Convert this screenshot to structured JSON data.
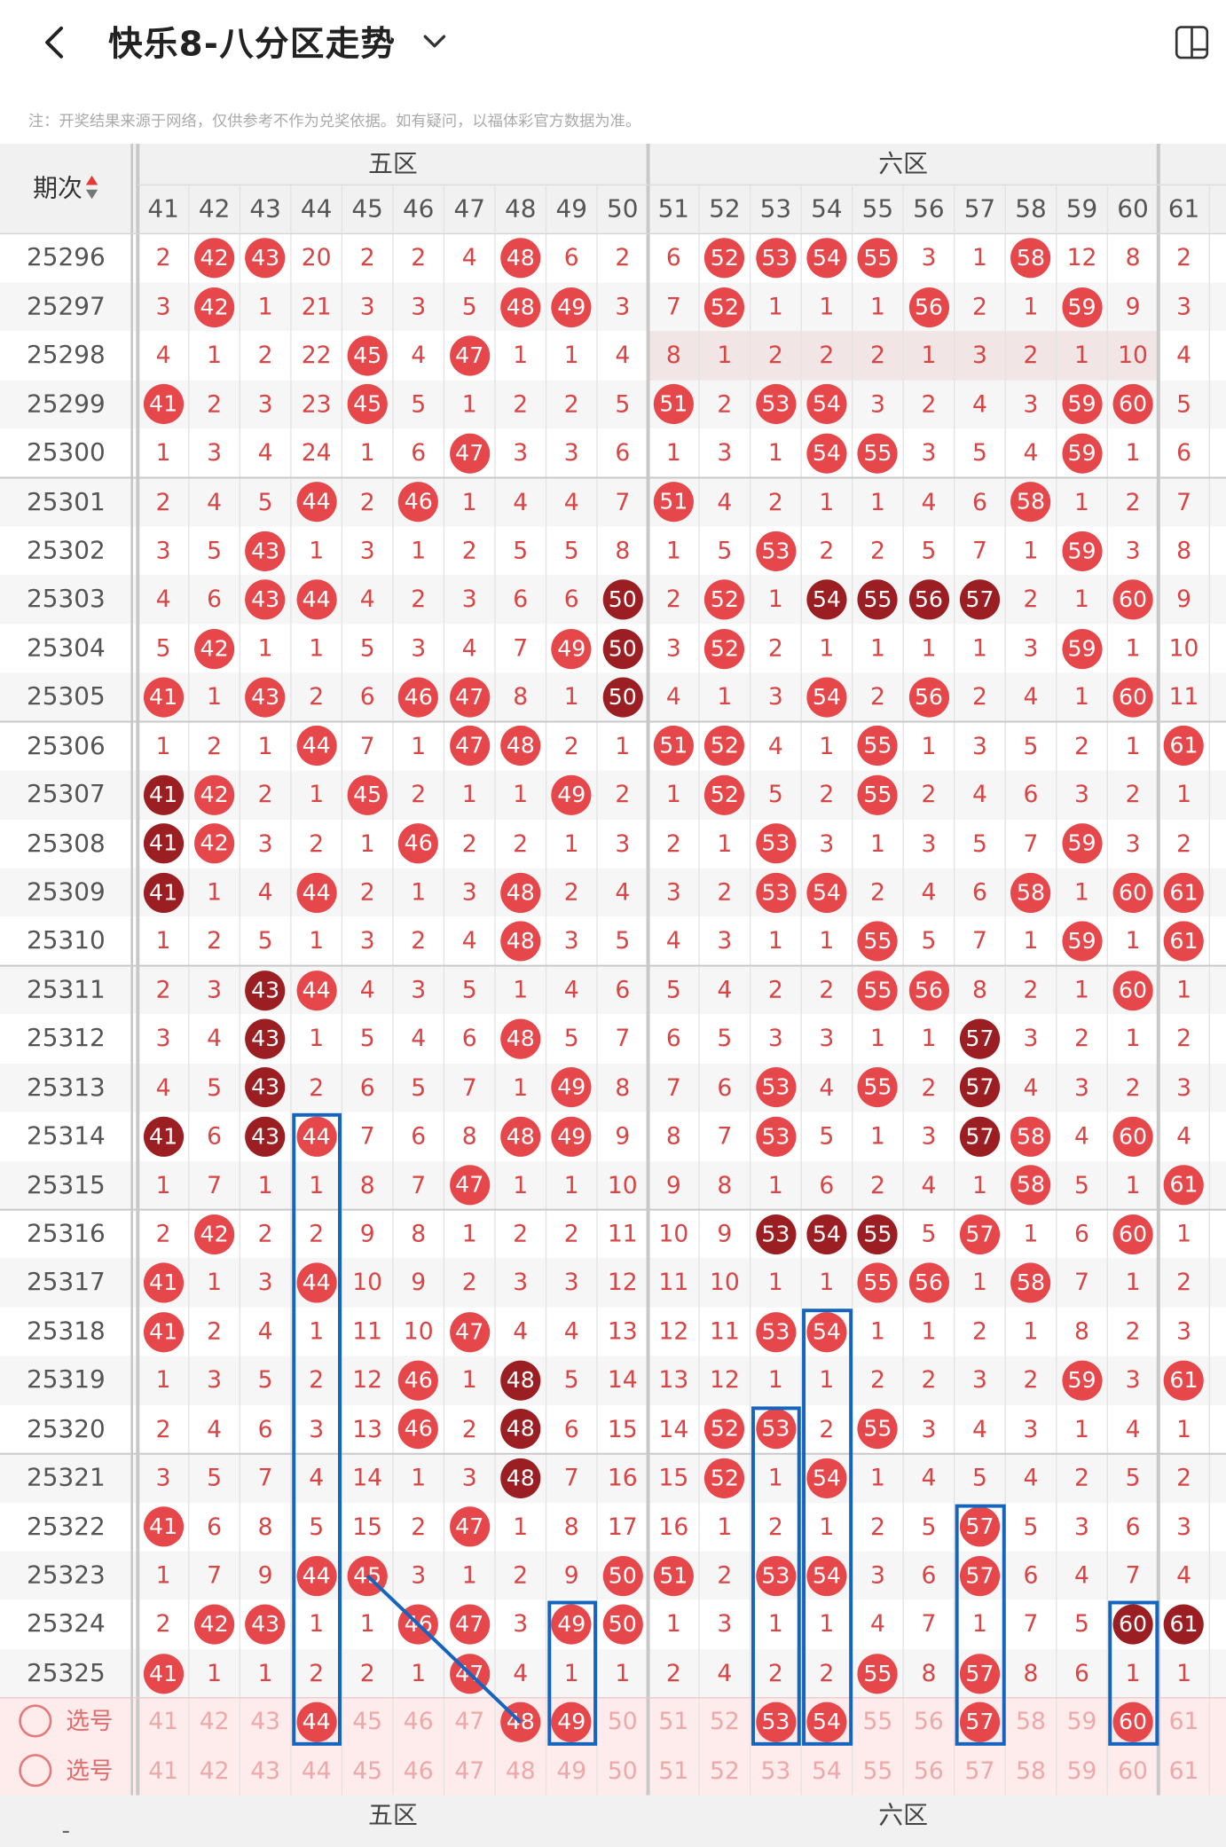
{
  "header": {
    "title": "快乐8-八分区走势",
    "note": "注：开奖结果来源于网络，仅供参考不作为兑奖依据。如有疑问，以福体彩官方数据为准。"
  },
  "table": {
    "period_header": "期次",
    "zones": [
      {
        "name": "五区",
        "first": 41,
        "last": 50
      },
      {
        "name": "六区",
        "first": 51,
        "last": 60
      }
    ],
    "columns": [
      "41",
      "42",
      "43",
      "44",
      "45",
      "46",
      "47",
      "48",
      "49",
      "50",
      "51",
      "52",
      "53",
      "54",
      "55",
      "56",
      "57",
      "58",
      "59",
      "60",
      "61"
    ],
    "periods": [
      "25296",
      "25297",
      "25298",
      "25299",
      "25300",
      "25301",
      "25302",
      "25303",
      "25304",
      "25305",
      "25306",
      "25307",
      "25308",
      "25309",
      "25310",
      "25311",
      "25312",
      "25313",
      "25314",
      "25315",
      "25316",
      "25317",
      "25318",
      "25319",
      "25320",
      "25321",
      "25322",
      "25323",
      "25324",
      "25325"
    ],
    "cells": [
      [
        "2",
        "42",
        "43",
        "20",
        "2",
        "2",
        "4",
        "48",
        "6",
        "2",
        "6",
        "52",
        "53",
        "54",
        "55",
        "3",
        "1",
        "58",
        "12",
        "8",
        "2"
      ],
      [
        "3",
        "42",
        "1",
        "21",
        "3",
        "3",
        "5",
        "48",
        "49",
        "3",
        "7",
        "52",
        "1",
        "1",
        "1",
        "56",
        "2",
        "1",
        "59",
        "9",
        "3"
      ],
      [
        "4",
        "1",
        "2",
        "22",
        "45",
        "4",
        "47",
        "1",
        "1",
        "4",
        "8",
        "1",
        "2",
        "2",
        "2",
        "1",
        "3",
        "2",
        "1",
        "10",
        "4"
      ],
      [
        "41",
        "2",
        "3",
        "23",
        "45",
        "5",
        "1",
        "2",
        "2",
        "5",
        "51",
        "2",
        "53",
        "54",
        "3",
        "2",
        "4",
        "3",
        "59",
        "60",
        "5"
      ],
      [
        "1",
        "3",
        "4",
        "24",
        "1",
        "6",
        "47",
        "3",
        "3",
        "6",
        "1",
        "3",
        "1",
        "54",
        "55",
        "3",
        "5",
        "4",
        "59",
        "1",
        "6"
      ],
      [
        "2",
        "4",
        "5",
        "44",
        "2",
        "46",
        "1",
        "4",
        "4",
        "7",
        "51",
        "4",
        "2",
        "1",
        "1",
        "4",
        "6",
        "58",
        "1",
        "2",
        "7"
      ],
      [
        "3",
        "5",
        "43",
        "1",
        "3",
        "1",
        "2",
        "5",
        "5",
        "8",
        "1",
        "5",
        "53",
        "2",
        "2",
        "5",
        "7",
        "1",
        "59",
        "3",
        "8"
      ],
      [
        "4",
        "6",
        "43",
        "44",
        "4",
        "2",
        "3",
        "6",
        "6",
        "50",
        "2",
        "52",
        "1",
        "54",
        "55",
        "56",
        "57",
        "2",
        "1",
        "60",
        "9"
      ],
      [
        "5",
        "42",
        "1",
        "1",
        "5",
        "3",
        "4",
        "7",
        "49",
        "50",
        "3",
        "52",
        "2",
        "1",
        "1",
        "1",
        "1",
        "3",
        "59",
        "1",
        "10"
      ],
      [
        "41",
        "1",
        "43",
        "2",
        "6",
        "46",
        "47",
        "8",
        "1",
        "50",
        "4",
        "1",
        "3",
        "54",
        "2",
        "56",
        "2",
        "4",
        "1",
        "60",
        "11"
      ],
      [
        "1",
        "2",
        "1",
        "44",
        "7",
        "1",
        "47",
        "48",
        "2",
        "1",
        "51",
        "52",
        "4",
        "1",
        "55",
        "1",
        "3",
        "5",
        "2",
        "1",
        "61"
      ],
      [
        "41",
        "42",
        "2",
        "1",
        "45",
        "2",
        "1",
        "1",
        "49",
        "2",
        "1",
        "52",
        "5",
        "2",
        "55",
        "2",
        "4",
        "6",
        "3",
        "2",
        "1"
      ],
      [
        "41",
        "42",
        "3",
        "2",
        "1",
        "46",
        "2",
        "2",
        "1",
        "3",
        "2",
        "1",
        "53",
        "3",
        "1",
        "3",
        "5",
        "7",
        "59",
        "3",
        "2"
      ],
      [
        "41",
        "1",
        "4",
        "44",
        "2",
        "1",
        "3",
        "48",
        "2",
        "4",
        "3",
        "2",
        "53",
        "54",
        "2",
        "4",
        "6",
        "58",
        "1",
        "60",
        "61"
      ],
      [
        "1",
        "2",
        "5",
        "1",
        "3",
        "2",
        "4",
        "48",
        "3",
        "5",
        "4",
        "3",
        "1",
        "1",
        "55",
        "5",
        "7",
        "1",
        "59",
        "1",
        "61"
      ],
      [
        "2",
        "3",
        "43",
        "44",
        "4",
        "3",
        "5",
        "1",
        "4",
        "6",
        "5",
        "4",
        "2",
        "2",
        "55",
        "56",
        "8",
        "2",
        "1",
        "60",
        "1"
      ],
      [
        "3",
        "4",
        "43",
        "1",
        "5",
        "4",
        "6",
        "48",
        "5",
        "7",
        "6",
        "5",
        "3",
        "3",
        "1",
        "1",
        "57",
        "3",
        "2",
        "1",
        "2"
      ],
      [
        "4",
        "5",
        "43",
        "2",
        "6",
        "5",
        "7",
        "1",
        "49",
        "8",
        "7",
        "6",
        "53",
        "4",
        "55",
        "2",
        "57",
        "4",
        "3",
        "2",
        "3"
      ],
      [
        "41",
        "6",
        "43",
        "44",
        "7",
        "6",
        "8",
        "48",
        "49",
        "9",
        "8",
        "7",
        "53",
        "5",
        "1",
        "3",
        "57",
        "58",
        "4",
        "60",
        "4"
      ],
      [
        "1",
        "7",
        "1",
        "1",
        "8",
        "7",
        "47",
        "1",
        "1",
        "10",
        "9",
        "8",
        "1",
        "6",
        "2",
        "4",
        "1",
        "58",
        "5",
        "1",
        "61"
      ],
      [
        "2",
        "42",
        "2",
        "2",
        "9",
        "8",
        "1",
        "2",
        "2",
        "11",
        "10",
        "9",
        "53",
        "54",
        "55",
        "5",
        "57",
        "1",
        "6",
        "60",
        "1"
      ],
      [
        "41",
        "1",
        "3",
        "44",
        "10",
        "9",
        "2",
        "3",
        "3",
        "12",
        "11",
        "10",
        "1",
        "1",
        "55",
        "56",
        "1",
        "58",
        "7",
        "1",
        "2"
      ],
      [
        "41",
        "2",
        "4",
        "1",
        "11",
        "10",
        "47",
        "4",
        "4",
        "13",
        "12",
        "11",
        "53",
        "54",
        "1",
        "1",
        "2",
        "1",
        "8",
        "2",
        "3"
      ],
      [
        "1",
        "3",
        "5",
        "2",
        "12",
        "46",
        "1",
        "48",
        "5",
        "14",
        "13",
        "12",
        "1",
        "1",
        "2",
        "2",
        "3",
        "2",
        "59",
        "3",
        "61"
      ],
      [
        "2",
        "4",
        "6",
        "3",
        "13",
        "46",
        "2",
        "48",
        "6",
        "15",
        "14",
        "52",
        "53",
        "2",
        "55",
        "3",
        "4",
        "3",
        "1",
        "4",
        "1"
      ],
      [
        "3",
        "5",
        "7",
        "4",
        "14",
        "1",
        "3",
        "48",
        "7",
        "16",
        "15",
        "52",
        "1",
        "54",
        "1",
        "4",
        "5",
        "4",
        "2",
        "5",
        "2"
      ],
      [
        "41",
        "6",
        "8",
        "5",
        "15",
        "2",
        "47",
        "1",
        "8",
        "17",
        "16",
        "1",
        "2",
        "1",
        "2",
        "5",
        "57",
        "5",
        "3",
        "6",
        "3"
      ],
      [
        "1",
        "7",
        "9",
        "44",
        "45",
        "3",
        "1",
        "2",
        "9",
        "50",
        "51",
        "2",
        "53",
        "54",
        "3",
        "6",
        "57",
        "6",
        "4",
        "7",
        "4"
      ],
      [
        "2",
        "42",
        "43",
        "1",
        "1",
        "46",
        "47",
        "3",
        "49",
        "50",
        "1",
        "3",
        "1",
        "1",
        "4",
        "7",
        "1",
        "7",
        "5",
        "60",
        "61"
      ],
      [
        "41",
        "1",
        "1",
        "2",
        "2",
        "1",
        "47",
        "4",
        "1",
        "1",
        "2",
        "4",
        "2",
        "2",
        "55",
        "8",
        "57",
        "8",
        "6",
        "1",
        "1"
      ]
    ],
    "dark_balls": [
      [],
      [],
      [],
      [],
      [],
      [],
      [],
      [
        9,
        13,
        14,
        15,
        16
      ],
      [
        9
      ],
      [
        9
      ],
      [],
      [
        0
      ],
      [
        0
      ],
      [
        0
      ],
      [],
      [
        2
      ],
      [
        2,
        16
      ],
      [
        2,
        16
      ],
      [
        0,
        2,
        16
      ],
      [],
      [
        12,
        13,
        14
      ],
      [],
      [],
      [
        7
      ],
      [
        7
      ],
      [
        7
      ],
      [],
      [],
      [
        19,
        20
      ],
      []
    ],
    "select_label": "选号",
    "select_rows": [
      [
        "41",
        "42",
        "43",
        "44",
        "45",
        "46",
        "47",
        "48",
        "49",
        "50",
        "51",
        "52",
        "53",
        "54",
        "55",
        "56",
        "57",
        "58",
        "59",
        "60",
        "61"
      ],
      [
        "41",
        "42",
        "43",
        "44",
        "45",
        "46",
        "47",
        "48",
        "49",
        "50",
        "51",
        "52",
        "53",
        "54",
        "55",
        "56",
        "57",
        "58",
        "59",
        "60",
        "61"
      ]
    ],
    "selected_balls": [
      "44",
      "48",
      "49",
      "53",
      "54",
      "57",
      "60"
    ],
    "footer_zones": [
      "五区",
      "六区"
    ],
    "footer_first": "-"
  },
  "colors": {
    "ball": "#e6474a",
    "ball_dark": "#9b1f22",
    "highlight": "#1565c0",
    "number": "#d94545"
  }
}
